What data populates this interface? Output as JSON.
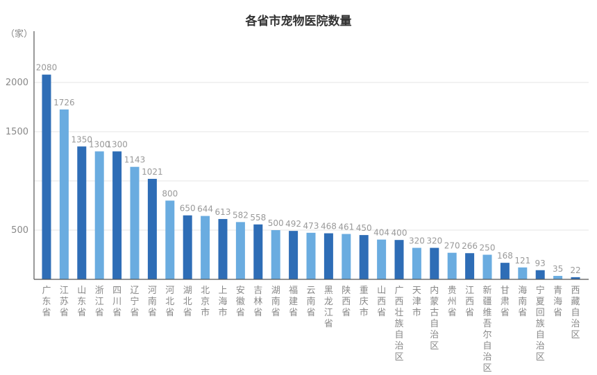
{
  "chart_data": {
    "type": "bar",
    "title": "各省市宠物医院数量",
    "ylabel": "（家）",
    "ylim": [
      0,
      2250
    ],
    "yticks": [
      500,
      1500,
      2000
    ],
    "gridlines": [
      500,
      1000,
      1500,
      2000
    ],
    "categories": [
      "广东省",
      "江苏省",
      "山东省",
      "浙江省",
      "四川省",
      "辽宁省",
      "河南省",
      "河北省",
      "湖北省",
      "北京市",
      "上海市",
      "安徽省",
      "吉林省",
      "湖南省",
      "福建省",
      "云南省",
      "黑龙江省",
      "陕西省",
      "重庆市",
      "山西省",
      "广西壮族自治区",
      "天津市",
      "内蒙古自治区",
      "贵州省",
      "江西省",
      "新疆维吾尔自治区",
      "甘肃省",
      "海南省",
      "宁夏回族自治区",
      "青海省",
      "西藏自治区"
    ],
    "values": [
      2080,
      1726,
      1350,
      1300,
      1300,
      1143,
      1021,
      800,
      650,
      644,
      613,
      582,
      558,
      500,
      492,
      473,
      468,
      461,
      450,
      404,
      400,
      320,
      320,
      270,
      266,
      250,
      168,
      121,
      93,
      35,
      22
    ],
    "value_labels": [
      "2080",
      "1726",
      "1350",
      "1300",
      "1300",
      "1143",
      "1021",
      "800",
      "650",
      "644",
      "613",
      "582",
      "558",
      "500",
      "492",
      "473",
      "468",
      "461",
      "450",
      "404",
      "400",
      "320",
      "320",
      "270",
      "266",
      "250",
      "168",
      "121",
      "93",
      "35",
      "22"
    ],
    "bar_color_pattern": [
      "dark",
      "light",
      "dark",
      "light",
      "dark",
      "light",
      "dark",
      "light",
      "dark",
      "light",
      "dark",
      "light",
      "dark",
      "light",
      "dark",
      "light",
      "dark",
      "light",
      "dark",
      "light",
      "dark",
      "light",
      "dark",
      "light",
      "dark",
      "light",
      "dark",
      "light",
      "dark",
      "light",
      "dark"
    ],
    "grid": true,
    "legend": "none"
  },
  "colors": {
    "dark": "#2e6db6",
    "light": "#6aace0",
    "title": "#333333",
    "text": "#888888"
  }
}
